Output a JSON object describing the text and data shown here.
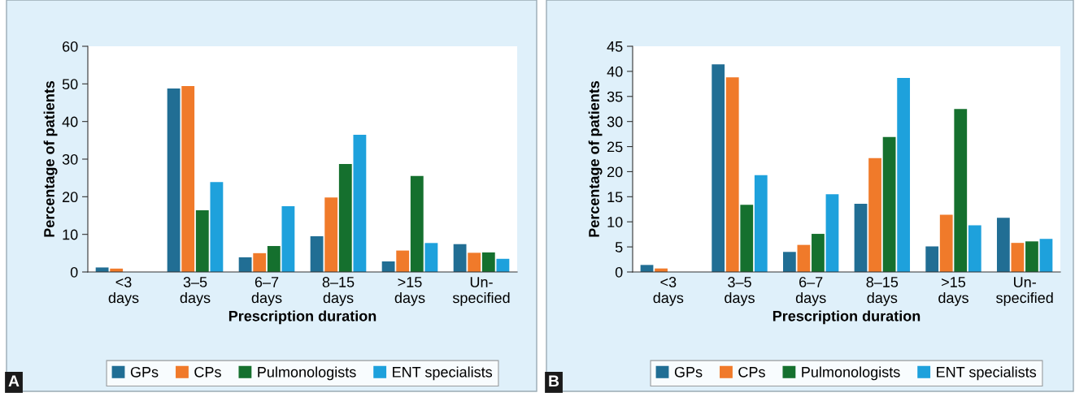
{
  "chart_data": [
    {
      "type": "bar",
      "xlabel": "Prescription duration",
      "ylabel": "Percentage of patients",
      "categories": [
        "<3\ndays",
        "3–5\ndays",
        "6–7\ndays",
        "8–15\ndays",
        ">15\ndays",
        "Un-\nspecified"
      ],
      "series": [
        {
          "name": "GPs",
          "color": "#216e94",
          "values": [
            1.2,
            48.8,
            3.9,
            9.5,
            2.8,
            7.4
          ]
        },
        {
          "name": "CPs",
          "color": "#f07a2a",
          "values": [
            0.9,
            49.4,
            5.0,
            19.8,
            5.7,
            5.1
          ]
        },
        {
          "name": "Pulmonologists",
          "color": "#15702e",
          "values": [
            0,
            16.4,
            6.9,
            28.7,
            25.5,
            5.2
          ]
        },
        {
          "name": "ENT specialists",
          "color": "#1ea1dc",
          "values": [
            0,
            23.9,
            17.5,
            36.5,
            7.7,
            3.5
          ]
        }
      ],
      "ylim": [
        0,
        60
      ],
      "yticks": [
        0,
        10,
        20,
        30,
        40,
        50,
        60
      ],
      "grid": false,
      "legend": "bottom",
      "annotations": [
        "A"
      ]
    },
    {
      "type": "bar",
      "xlabel": "Prescription duration",
      "ylabel": "Percentage of patients",
      "categories": [
        "<3\ndays",
        "3–5\ndays",
        "6–7\ndays",
        "8–15\ndays",
        ">15\ndays",
        "Un-\nspecified"
      ],
      "series": [
        {
          "name": "GPs",
          "color": "#216e94",
          "values": [
            1.4,
            41.4,
            4.0,
            13.6,
            5.1,
            10.8
          ]
        },
        {
          "name": "CPs",
          "color": "#f07a2a",
          "values": [
            0.7,
            38.8,
            5.4,
            22.7,
            11.4,
            5.8
          ]
        },
        {
          "name": "Pulmonologists",
          "color": "#15702e",
          "values": [
            0,
            13.4,
            7.6,
            26.9,
            32.5,
            6.1
          ]
        },
        {
          "name": "ENT specialists",
          "color": "#1ea1dc",
          "values": [
            0,
            19.3,
            15.5,
            38.7,
            9.3,
            6.6
          ]
        }
      ],
      "ylim": [
        0,
        45
      ],
      "yticks": [
        0,
        5,
        10,
        15,
        20,
        25,
        30,
        35,
        40,
        45
      ],
      "grid": false,
      "legend": "bottom",
      "annotations": [
        "B"
      ]
    }
  ]
}
